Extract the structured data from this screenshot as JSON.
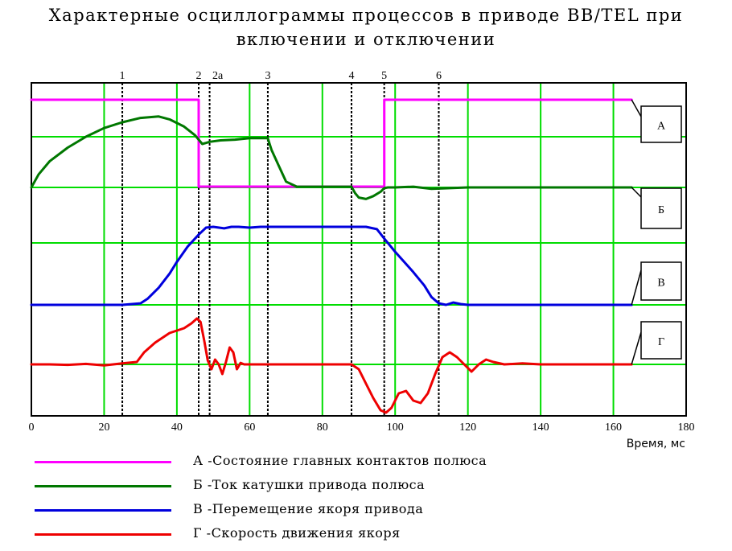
{
  "chart_data": {
    "type": "line",
    "title_lines": [
      "Характерные осциллограммы процессов в приводе BB/TEL при",
      "включении и отключении"
    ],
    "xlabel": "Время, мс",
    "xlim": [
      0,
      180
    ],
    "x_ticks": [
      0,
      20,
      40,
      60,
      80,
      100,
      120,
      140,
      160,
      180
    ],
    "grid": true,
    "markers": [
      {
        "label": "1",
        "x": 25
      },
      {
        "label": "2",
        "x": 46
      },
      {
        "label": "2а",
        "x": 49
      },
      {
        "label": "3",
        "x": 65
      },
      {
        "label": "4",
        "x": 88
      },
      {
        "label": "5",
        "x": 97
      },
      {
        "label": "6",
        "x": 112
      }
    ],
    "series": [
      {
        "key": "A",
        "tag": "А",
        "name": "А -Состояние главных контактов полюса",
        "color": "#ff00ff",
        "x": [
          0,
          46,
          46,
          97,
          97,
          165
        ],
        "y": [
          1,
          1,
          0,
          0,
          1,
          1
        ]
      },
      {
        "key": "B",
        "tag": "Б",
        "name": "Б -Ток катушки привода полюса",
        "color": "#007700",
        "x": [
          0,
          2,
          5,
          10,
          15,
          20,
          25,
          30,
          35,
          38,
          42,
          45,
          47,
          49,
          52,
          56,
          60,
          62,
          65,
          66,
          68,
          70,
          73,
          80,
          88,
          89,
          90,
          92,
          94,
          96,
          97,
          98,
          100,
          105,
          110,
          120,
          130,
          140,
          150,
          160,
          165
        ],
        "y": [
          0,
          0.18,
          0.36,
          0.55,
          0.7,
          0.82,
          0.9,
          0.96,
          0.98,
          0.94,
          0.84,
          0.72,
          0.6,
          0.63,
          0.65,
          0.66,
          0.68,
          0.68,
          0.68,
          0.52,
          0.3,
          0.08,
          0.01,
          0.01,
          0.01,
          -0.08,
          -0.14,
          -0.16,
          -0.12,
          -0.06,
          -0.01,
          0,
          0,
          0.01,
          -0.02,
          0,
          0,
          0,
          0,
          0,
          0
        ]
      },
      {
        "key": "V",
        "tag": "В",
        "name": "В -Перемещение якоря привода",
        "color": "#0000dd",
        "x": [
          0,
          10,
          20,
          25,
          30,
          32,
          35,
          38,
          40,
          43,
          46,
          48,
          50,
          53,
          55,
          57,
          60,
          63,
          66,
          70,
          80,
          88,
          92,
          95,
          97,
          100,
          105,
          108,
          110,
          112,
          114,
          116,
          118,
          120,
          130,
          140,
          150,
          160,
          165
        ],
        "y": [
          0,
          0,
          0,
          0,
          0.02,
          0.08,
          0.22,
          0.4,
          0.55,
          0.75,
          0.9,
          0.99,
          1.0,
          0.98,
          1.0,
          1.0,
          0.99,
          1.0,
          1.0,
          1.0,
          1.0,
          1.0,
          1.0,
          0.97,
          0.85,
          0.68,
          0.42,
          0.25,
          0.1,
          0.02,
          0.0,
          0.03,
          0.01,
          0.0,
          0.0,
          0.0,
          0.0,
          0.0,
          0.0
        ]
      },
      {
        "key": "G",
        "tag": "Г",
        "name": "Г -Скорость движения якоря",
        "color": "#ee0000",
        "x": [
          0,
          5,
          10,
          15,
          20,
          25,
          29,
          31,
          34,
          38,
          42,
          44,
          45.5,
          46.5,
          47.5,
          48.5,
          49.5,
          50.5,
          51.5,
          52.5,
          53.5,
          54.5,
          55.5,
          56.5,
          57.5,
          58.5,
          60,
          62,
          70,
          80,
          88,
          90,
          92,
          94,
          96,
          97.5,
          99,
          101,
          103,
          105,
          107,
          109,
          111,
          113,
          115,
          117,
          119,
          121,
          123,
          125,
          127,
          130,
          135,
          140,
          150,
          165
        ],
        "y": [
          0,
          0,
          -0.01,
          0.01,
          -0.02,
          0.02,
          0.05,
          0.25,
          0.45,
          0.65,
          0.75,
          0.85,
          0.95,
          0.88,
          0.5,
          0.08,
          -0.1,
          0.1,
          0.0,
          -0.2,
          0.05,
          0.35,
          0.25,
          -0.1,
          0.03,
          0.0,
          0.0,
          0.0,
          0.0,
          0.0,
          0.0,
          -0.1,
          -0.4,
          -0.7,
          -0.95,
          -1.0,
          -0.9,
          -0.6,
          -0.55,
          -0.75,
          -0.8,
          -0.6,
          -0.2,
          0.15,
          0.25,
          0.15,
          0.0,
          -0.15,
          0.0,
          0.1,
          0.05,
          0.0,
          0.02,
          0.0,
          0.0,
          0.0
        ]
      }
    ]
  }
}
